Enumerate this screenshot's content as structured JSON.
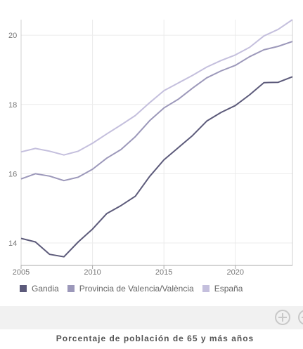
{
  "chart_data": {
    "type": "line",
    "x": [
      2005,
      2006,
      2007,
      2008,
      2009,
      2010,
      2011,
      2012,
      2013,
      2014,
      2015,
      2016,
      2017,
      2018,
      2019,
      2020,
      2021,
      2022,
      2023,
      2024
    ],
    "series": [
      {
        "name": "Gandia",
        "color": "#5c5a7a",
        "values": [
          14.13,
          14.03,
          13.67,
          13.6,
          14.03,
          14.4,
          14.85,
          15.08,
          15.35,
          15.92,
          16.4,
          16.75,
          17.1,
          17.52,
          17.77,
          17.97,
          18.28,
          18.63,
          18.64,
          18.8
        ]
      },
      {
        "name": "Provincia de Valencia/València",
        "color": "#9c98ba",
        "values": [
          15.85,
          16.0,
          15.93,
          15.8,
          15.9,
          16.13,
          16.45,
          16.7,
          17.07,
          17.53,
          17.9,
          18.15,
          18.47,
          18.77,
          18.97,
          19.13,
          19.38,
          19.58,
          19.68,
          19.82
        ]
      },
      {
        "name": "España",
        "color": "#c4bfdd",
        "values": [
          16.63,
          16.73,
          16.65,
          16.54,
          16.65,
          16.88,
          17.15,
          17.41,
          17.68,
          18.05,
          18.4,
          18.62,
          18.84,
          19.08,
          19.27,
          19.43,
          19.65,
          19.98,
          20.17,
          20.45
        ]
      }
    ],
    "yticks": [
      14,
      16,
      18,
      20
    ],
    "xticks": [
      2005,
      2010,
      2015,
      2020
    ],
    "xlim": [
      2005,
      2024
    ],
    "ylim": [
      13.35,
      20.45
    ],
    "grid": true,
    "legend_position": "bottom-left",
    "title": "Porcentaje de población de 65 y más años"
  },
  "toolbar": {
    "zoom_in_icon": "plus-circle-icon",
    "zoom_out_icon": "minus-circle-icon"
  }
}
